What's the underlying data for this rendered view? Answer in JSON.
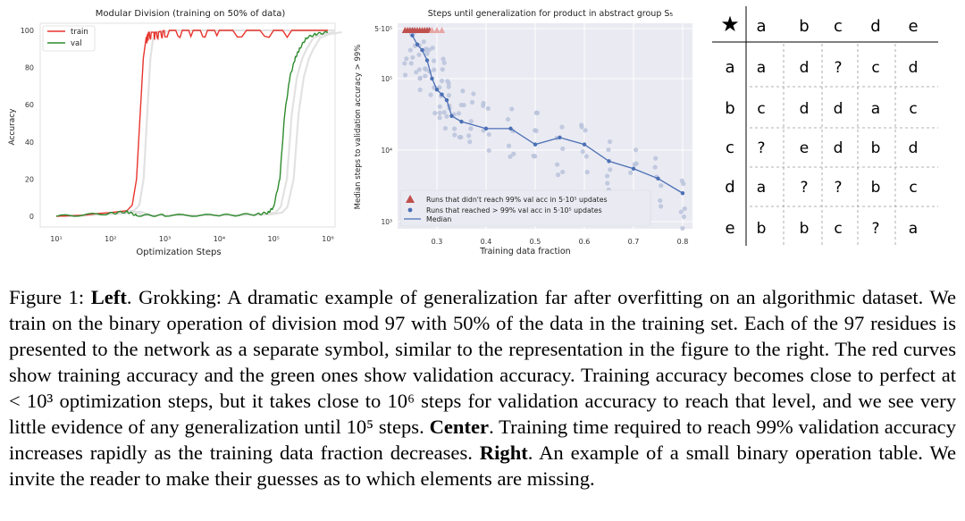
{
  "chart_data": [
    {
      "type": "line",
      "title": "Modular Division (training on 50% of data)",
      "xlabel": "Optimization Steps",
      "ylabel": "Accuracy",
      "xscale": "log",
      "xlim": [
        10,
        1000000
      ],
      "ylim": [
        0,
        100
      ],
      "xticks": [
        "10¹",
        "10²",
        "10³",
        "10⁴",
        "10⁵",
        "10⁶"
      ],
      "yticks": [
        "0",
        "20",
        "40",
        "60",
        "80",
        "100"
      ],
      "legend": "top-left",
      "series": [
        {
          "name": "train",
          "color": "#e8352e",
          "x": [
            10,
            30,
            60,
            100,
            200,
            250,
            300,
            350,
            400,
            450,
            500,
            700,
            1000,
            3000,
            10000,
            100000,
            1000000
          ],
          "y": [
            0,
            0.5,
            1.5,
            2,
            3,
            6,
            20,
            55,
            85,
            96,
            99,
            99,
            100,
            100,
            100,
            100,
            100
          ]
        },
        {
          "name": "val",
          "color": "#2e8b2e",
          "x": [
            10,
            100,
            200,
            300,
            1000,
            10000,
            50000,
            80000,
            100000,
            130000,
            160000,
            200000,
            250000,
            300000,
            400000,
            600000,
            1000000
          ],
          "y": [
            0,
            1.5,
            2.5,
            0.5,
            0.5,
            0.5,
            1,
            2,
            5,
            20,
            55,
            75,
            85,
            90,
            96,
            98,
            99
          ]
        }
      ],
      "legend_entries": [
        "train",
        "val"
      ]
    },
    {
      "type": "scatter",
      "title": "Steps until generalization for product in abstract group S₅",
      "xlabel": "Training data fraction",
      "ylabel": "Median steps to validation accuracy > 99%",
      "yscale": "log",
      "xlim": [
        0.22,
        0.82
      ],
      "ylim": [
        1000,
        500000
      ],
      "xticks": [
        "0.3",
        "0.4",
        "0.5",
        "0.6",
        "0.7",
        "0.8"
      ],
      "yticks": [
        "10³",
        "10⁴",
        "10⁵",
        "5·10⁵"
      ],
      "legend": "bottom-left",
      "legend_entries": [
        "Runs that didn't reach 99% val acc in 5·10⁵ updates",
        "Runs that reached > 99% val acc in 5·10⁵ updates",
        "Median"
      ],
      "median": {
        "x": [
          0.25,
          0.26,
          0.27,
          0.28,
          0.29,
          0.3,
          0.31,
          0.32,
          0.33,
          0.35,
          0.4,
          0.45,
          0.5,
          0.55,
          0.6,
          0.65,
          0.7,
          0.75,
          0.8
        ],
        "y": [
          400000,
          300000,
          250000,
          180000,
          100000,
          70000,
          60000,
          50000,
          30000,
          25000,
          20000,
          20000,
          12000,
          15000,
          12000,
          7000,
          5500,
          4000,
          2500
        ]
      },
      "not_reached_x": [
        0.235,
        0.24,
        0.245,
        0.25,
        0.255,
        0.26,
        0.265,
        0.27,
        0.275,
        0.28,
        0.285,
        0.29,
        0.3,
        0.31
      ],
      "reached": {
        "x": [
          0.24,
          0.25,
          0.26,
          0.27,
          0.28,
          0.29,
          0.3,
          0.31,
          0.32,
          0.33,
          0.35,
          0.37,
          0.4,
          0.45,
          0.5,
          0.55,
          0.6,
          0.65,
          0.7,
          0.75,
          0.8
        ],
        "y": [
          250000,
          350000,
          200000,
          150000,
          300000,
          120000,
          60000,
          90000,
          45000,
          35000,
          30000,
          28000,
          22000,
          18000,
          15000,
          10000,
          11000,
          6000,
          4500,
          3500,
          1800
        ]
      }
    }
  ],
  "table": {
    "corner": "★",
    "columns": [
      "a",
      "b",
      "c",
      "d",
      "e"
    ],
    "rows": [
      {
        "label": "a",
        "cells": [
          "a",
          "d",
          "?",
          "c",
          "d"
        ]
      },
      {
        "label": "b",
        "cells": [
          "c",
          "d",
          "d",
          "a",
          "c"
        ]
      },
      {
        "label": "c",
        "cells": [
          "?",
          "e",
          "d",
          "b",
          "d"
        ]
      },
      {
        "label": "d",
        "cells": [
          "a",
          "?",
          "?",
          "b",
          "c"
        ]
      },
      {
        "label": "e",
        "cells": [
          "b",
          "b",
          "c",
          "?",
          "a"
        ]
      }
    ]
  },
  "caption": {
    "fig": "Figure 1: ",
    "left_head": "Left",
    "left_text": ". Grokking: A dramatic example of generalization far after overfitting on an algorithmic dataset. We train on the binary operation of division mod 97 with 50% of the data in the training set. Each of the 97 residues is presented to the network as a separate symbol, similar to the representation in the figure to the right. The red curves show training accuracy and the green ones show validation accuracy. Training accuracy becomes close to perfect at < 10³ optimization steps, but it takes close to 10⁶ steps for validation accuracy to reach that level, and we see very little evidence of any generalization until 10⁵ steps. ",
    "center_head": "Center",
    "center_text": ". Training time required to reach 99% validation accuracy increases rapidly as the training data fraction decreases. ",
    "right_head": "Right",
    "right_text": ". An example of a small binary operation table. We invite the reader to make their guesses as to which elements are missing."
  }
}
